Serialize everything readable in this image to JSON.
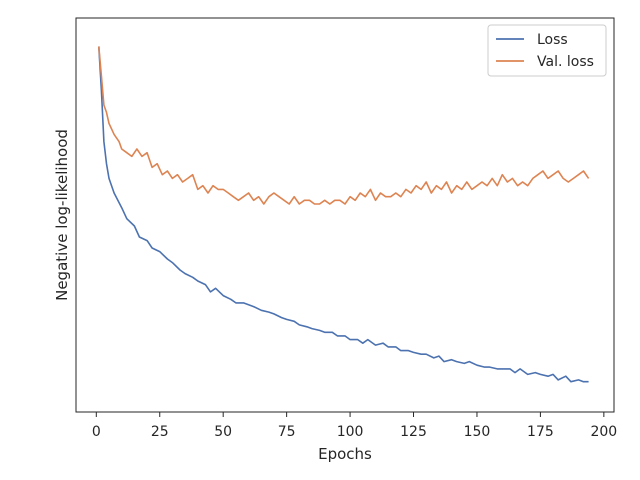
{
  "chart_data": {
    "type": "line",
    "xlabel": "Epochs",
    "ylabel": "Negative log-likelihood",
    "xlim": [
      -8,
      204
    ],
    "ylim": [
      0,
      1
    ],
    "xticks": [
      0,
      25,
      50,
      75,
      100,
      125,
      150,
      175,
      200
    ],
    "y_tick_labels_shown": false,
    "grid": false,
    "legend_position": "top-right",
    "series": [
      {
        "name": "Loss",
        "color": "#4c72b0",
        "points": [
          [
            1,
            0.96
          ],
          [
            2,
            0.84
          ],
          [
            3,
            0.7
          ],
          [
            4,
            0.64
          ],
          [
            5,
            0.6
          ],
          [
            7,
            0.56
          ],
          [
            10,
            0.52
          ],
          [
            12,
            0.49
          ],
          [
            15,
            0.47
          ],
          [
            17,
            0.44
          ],
          [
            20,
            0.43
          ],
          [
            22,
            0.41
          ],
          [
            25,
            0.4
          ],
          [
            28,
            0.38
          ],
          [
            30,
            0.37
          ],
          [
            33,
            0.35
          ],
          [
            35,
            0.34
          ],
          [
            38,
            0.33
          ],
          [
            40,
            0.32
          ],
          [
            43,
            0.31
          ],
          [
            45,
            0.29
          ],
          [
            47,
            0.3
          ],
          [
            50,
            0.28
          ],
          [
            53,
            0.27
          ],
          [
            55,
            0.26
          ],
          [
            58,
            0.26
          ],
          [
            60,
            0.255
          ],
          [
            62,
            0.25
          ],
          [
            65,
            0.24
          ],
          [
            68,
            0.235
          ],
          [
            70,
            0.23
          ],
          [
            73,
            0.22
          ],
          [
            75,
            0.215
          ],
          [
            78,
            0.21
          ],
          [
            80,
            0.2
          ],
          [
            83,
            0.195
          ],
          [
            85,
            0.19
          ],
          [
            88,
            0.185
          ],
          [
            90,
            0.18
          ],
          [
            93,
            0.18
          ],
          [
            95,
            0.17
          ],
          [
            98,
            0.17
          ],
          [
            100,
            0.16
          ],
          [
            103,
            0.16
          ],
          [
            105,
            0.15
          ],
          [
            107,
            0.16
          ],
          [
            110,
            0.145
          ],
          [
            113,
            0.15
          ],
          [
            115,
            0.14
          ],
          [
            118,
            0.14
          ],
          [
            120,
            0.13
          ],
          [
            123,
            0.13
          ],
          [
            125,
            0.125
          ],
          [
            128,
            0.12
          ],
          [
            130,
            0.12
          ],
          [
            133,
            0.11
          ],
          [
            135,
            0.115
          ],
          [
            137,
            0.1
          ],
          [
            140,
            0.105
          ],
          [
            142,
            0.1
          ],
          [
            145,
            0.095
          ],
          [
            147,
            0.1
          ],
          [
            150,
            0.09
          ],
          [
            153,
            0.085
          ],
          [
            155,
            0.085
          ],
          [
            158,
            0.08
          ],
          [
            160,
            0.08
          ],
          [
            163,
            0.08
          ],
          [
            165,
            0.07
          ],
          [
            167,
            0.08
          ],
          [
            170,
            0.065
          ],
          [
            173,
            0.07
          ],
          [
            175,
            0.065
          ],
          [
            178,
            0.06
          ],
          [
            180,
            0.065
          ],
          [
            182,
            0.05
          ],
          [
            185,
            0.06
          ],
          [
            187,
            0.045
          ],
          [
            190,
            0.05
          ],
          [
            192,
            0.045
          ],
          [
            194,
            0.045
          ]
        ]
      },
      {
        "name": "Val. loss",
        "color": "#dd8452",
        "points": [
          [
            1,
            0.96
          ],
          [
            2,
            0.88
          ],
          [
            3,
            0.8
          ],
          [
            4,
            0.78
          ],
          [
            5,
            0.75
          ],
          [
            7,
            0.72
          ],
          [
            9,
            0.7
          ],
          [
            10,
            0.68
          ],
          [
            12,
            0.67
          ],
          [
            14,
            0.66
          ],
          [
            16,
            0.68
          ],
          [
            18,
            0.66
          ],
          [
            20,
            0.67
          ],
          [
            22,
            0.63
          ],
          [
            24,
            0.64
          ],
          [
            26,
            0.61
          ],
          [
            28,
            0.62
          ],
          [
            30,
            0.6
          ],
          [
            32,
            0.61
          ],
          [
            34,
            0.59
          ],
          [
            36,
            0.6
          ],
          [
            38,
            0.61
          ],
          [
            40,
            0.57
          ],
          [
            42,
            0.58
          ],
          [
            44,
            0.56
          ],
          [
            46,
            0.58
          ],
          [
            48,
            0.57
          ],
          [
            50,
            0.57
          ],
          [
            52,
            0.56
          ],
          [
            54,
            0.55
          ],
          [
            56,
            0.54
          ],
          [
            58,
            0.55
          ],
          [
            60,
            0.56
          ],
          [
            62,
            0.54
          ],
          [
            64,
            0.55
          ],
          [
            66,
            0.53
          ],
          [
            68,
            0.55
          ],
          [
            70,
            0.56
          ],
          [
            72,
            0.55
          ],
          [
            74,
            0.54
          ],
          [
            76,
            0.53
          ],
          [
            78,
            0.55
          ],
          [
            80,
            0.53
          ],
          [
            82,
            0.54
          ],
          [
            84,
            0.54
          ],
          [
            86,
            0.53
          ],
          [
            88,
            0.53
          ],
          [
            90,
            0.54
          ],
          [
            92,
            0.53
          ],
          [
            94,
            0.54
          ],
          [
            96,
            0.54
          ],
          [
            98,
            0.53
          ],
          [
            100,
            0.55
          ],
          [
            102,
            0.54
          ],
          [
            104,
            0.56
          ],
          [
            106,
            0.55
          ],
          [
            108,
            0.57
          ],
          [
            110,
            0.54
          ],
          [
            112,
            0.56
          ],
          [
            114,
            0.55
          ],
          [
            116,
            0.55
          ],
          [
            118,
            0.56
          ],
          [
            120,
            0.55
          ],
          [
            122,
            0.57
          ],
          [
            124,
            0.56
          ],
          [
            126,
            0.58
          ],
          [
            128,
            0.57
          ],
          [
            130,
            0.59
          ],
          [
            132,
            0.56
          ],
          [
            134,
            0.58
          ],
          [
            136,
            0.57
          ],
          [
            138,
            0.59
          ],
          [
            140,
            0.56
          ],
          [
            142,
            0.58
          ],
          [
            144,
            0.57
          ],
          [
            146,
            0.59
          ],
          [
            148,
            0.57
          ],
          [
            150,
            0.58
          ],
          [
            152,
            0.59
          ],
          [
            154,
            0.58
          ],
          [
            156,
            0.6
          ],
          [
            158,
            0.58
          ],
          [
            160,
            0.61
          ],
          [
            162,
            0.59
          ],
          [
            164,
            0.6
          ],
          [
            166,
            0.58
          ],
          [
            168,
            0.59
          ],
          [
            170,
            0.58
          ],
          [
            172,
            0.6
          ],
          [
            174,
            0.61
          ],
          [
            176,
            0.62
          ],
          [
            178,
            0.6
          ],
          [
            180,
            0.61
          ],
          [
            182,
            0.62
          ],
          [
            184,
            0.6
          ],
          [
            186,
            0.59
          ],
          [
            188,
            0.6
          ],
          [
            190,
            0.61
          ],
          [
            192,
            0.62
          ],
          [
            194,
            0.6
          ]
        ]
      }
    ]
  }
}
